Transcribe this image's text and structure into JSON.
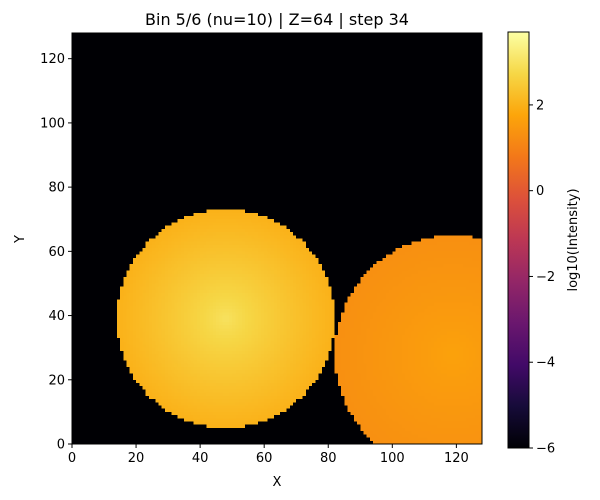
{
  "chart_data": {
    "type": "heatmap",
    "title": "Bin 5/6 (nu=10) | Z=64 | step 34",
    "xlabel": "X",
    "ylabel": "Y",
    "xlim": [
      0,
      128
    ],
    "ylim": [
      0,
      128
    ],
    "x_ticks": [
      0,
      20,
      40,
      60,
      80,
      100,
      120
    ],
    "y_ticks": [
      0,
      20,
      40,
      60,
      80,
      100,
      120
    ],
    "grid": false,
    "colormap": "inferno",
    "colorbar": {
      "label": "log10(Intensity)",
      "range": [
        -6,
        3.7
      ],
      "ticks": [
        -6,
        -4,
        -2,
        0,
        2
      ],
      "tick_labels": [
        "−6",
        "−4",
        "−2",
        "0",
        "2"
      ]
    },
    "background_value": -6,
    "regions": [
      {
        "shape": "disk",
        "center": [
          48,
          39
        ],
        "radius": 34,
        "peak_value": 3.0,
        "edge_value": 2.0
      },
      {
        "shape": "disk",
        "center": [
          119,
          28
        ],
        "radius": 37,
        "peak_value": 1.7,
        "edge_value": 1.3
      }
    ]
  }
}
